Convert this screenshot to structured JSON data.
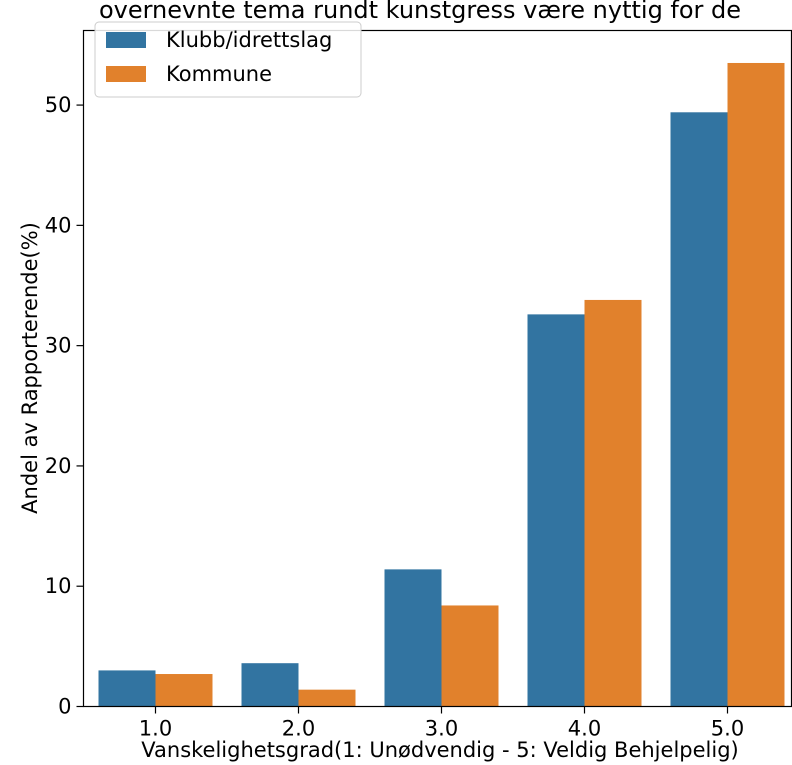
{
  "chart_data": {
    "type": "bar",
    "title": "overnevnte tema rundt kunstgress være nyttig for de",
    "xlabel": "Vanskelighetsgrad(1: Unødvendig - 5: Veldig Behjelpelig)",
    "ylabel": "Andel av Rapporterende(%)",
    "categories": [
      "1.0",
      "2.0",
      "3.0",
      "4.0",
      "5.0"
    ],
    "series": [
      {
        "name": "Klubb/idrettslag",
        "color": "#3274a1",
        "values": [
          3.0,
          3.6,
          11.4,
          32.6,
          49.4
        ]
      },
      {
        "name": "Kommune",
        "color": "#e1812c",
        "values": [
          2.7,
          1.4,
          8.4,
          33.8,
          53.5
        ]
      }
    ],
    "yticks": [
      0,
      10,
      20,
      30,
      40,
      50
    ],
    "ylim": [
      0,
      56.2
    ],
    "grid": false,
    "legend_position": "top-left"
  }
}
